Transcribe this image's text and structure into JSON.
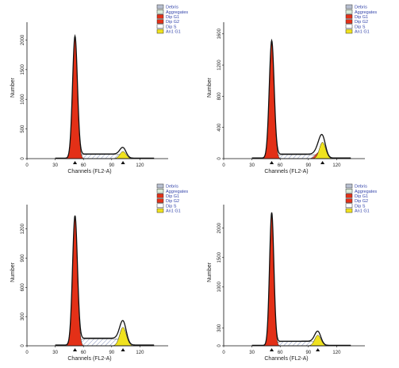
{
  "chart_data": [
    {
      "type": "area",
      "xlabel": "Channels (FL2-A)",
      "ylabel": "Number",
      "xlim": [
        0,
        150
      ],
      "ylim": [
        0,
        2300
      ],
      "xticks": [
        0,
        30,
        60,
        90,
        120
      ],
      "yticks": [
        0,
        500,
        1000,
        1500,
        2000
      ],
      "legend": [
        "Debris",
        "Aggregates",
        "Dip G1",
        "Dip G2",
        "Dip S",
        "An1 G1"
      ],
      "peaks": [
        {
          "name": "Dip G1",
          "center": 51,
          "sd": 2.6,
          "height": 2050
        },
        {
          "name": "An1 G1",
          "center": 102,
          "sd": 3.3,
          "height": 120
        }
      ],
      "s_phase_level": 70,
      "g2_height": 0,
      "markers": [
        51,
        102
      ]
    },
    {
      "type": "area",
      "xlabel": "Channels (FL2-A)",
      "ylabel": "Number",
      "xlim": [
        0,
        150
      ],
      "ylim": [
        0,
        1750
      ],
      "xticks": [
        0,
        30,
        60,
        90,
        120
      ],
      "yticks": [
        0,
        400,
        800,
        1200,
        1600
      ],
      "legend": [
        "Debris",
        "Aggregates",
        "Dip G1",
        "Dip G2",
        "Dip S",
        "An1 G1"
      ],
      "peaks": [
        {
          "name": "Dip G1",
          "center": 51,
          "sd": 2.6,
          "height": 1500
        },
        {
          "name": "An1 G1",
          "center": 105,
          "sd": 3.3,
          "height": 210
        }
      ],
      "s_phase_level": 50,
      "g2_height": 80,
      "markers": [
        51,
        105
      ]
    },
    {
      "type": "area",
      "xlabel": "Channels (FL2-A)",
      "ylabel": "Number",
      "xlim": [
        0,
        150
      ],
      "ylim": [
        0,
        1450
      ],
      "xticks": [
        0,
        30,
        60,
        90,
        120
      ],
      "yticks": [
        0,
        300,
        600,
        900,
        1200
      ],
      "legend": [
        "Debris",
        "Aggregates",
        "Dip G1",
        "Dip G2",
        "Dip S",
        "An1 G1"
      ],
      "peaks": [
        {
          "name": "Dip G1",
          "center": 51,
          "sd": 2.6,
          "height": 1320
        },
        {
          "name": "An1 G1",
          "center": 102,
          "sd": 3.5,
          "height": 190
        }
      ],
      "s_phase_level": 70,
      "g2_height": 0,
      "markers": [
        51,
        102
      ]
    },
    {
      "type": "area",
      "xlabel": "Channels (FL2-A)",
      "ylabel": "Number",
      "xlim": [
        0,
        150
      ],
      "ylim": [
        0,
        2400
      ],
      "xticks": [
        0,
        30,
        60,
        90,
        120
      ],
      "yticks": [
        0,
        300,
        1000,
        1500,
        2000
      ],
      "legend": [
        "Debris",
        "Aggregates",
        "Dip G1",
        "Dip G2",
        "Dip S",
        "An1 G1"
      ],
      "peaks": [
        {
          "name": "Dip G1",
          "center": 51,
          "sd": 2.3,
          "height": 2250
        },
        {
          "name": "An1 G1",
          "center": 100,
          "sd": 3.3,
          "height": 180
        }
      ],
      "s_phase_level": 70,
      "g2_height": 0,
      "markers": [
        51,
        100
      ]
    }
  ],
  "colors": {
    "debris": "#b7bfd0",
    "aggregates": "#d8ead8",
    "dip_g1": "#e33017",
    "dip_g2": "#e33017",
    "dip_s": "#ffffff",
    "an1_g1": "#f0e21e"
  }
}
